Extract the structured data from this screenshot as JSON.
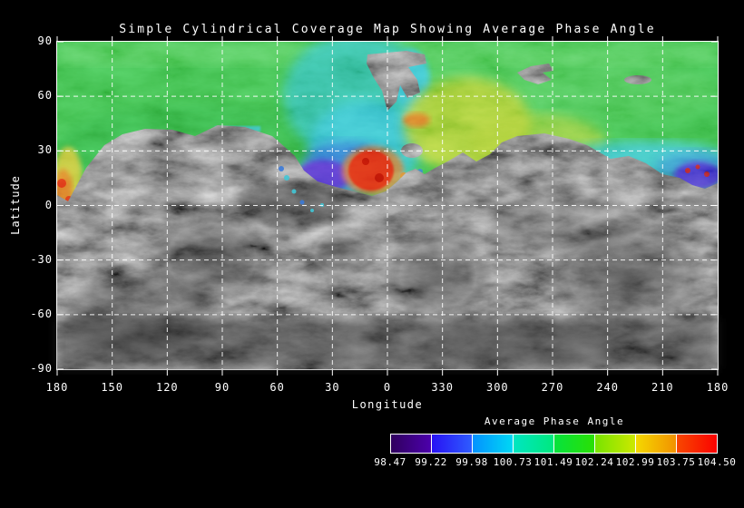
{
  "title": "Simple Cylindrical Coverage Map Showing Average Phase Angle",
  "axes": {
    "x": {
      "label": "Longitude",
      "ticks": [
        "180",
        "150",
        "120",
        "90",
        "60",
        "30",
        "0",
        "330",
        "300",
        "270",
        "240",
        "210",
        "180"
      ]
    },
    "y": {
      "label": "Latitude",
      "ticks": [
        "90",
        "60",
        "30",
        "0",
        "-30",
        "-60",
        "-90"
      ]
    }
  },
  "colorbar": {
    "title": "Average Phase Angle",
    "labels": [
      "98.47",
      "99.22",
      "99.98",
      "100.73",
      "101.49",
      "102.24",
      "102.99",
      "103.75",
      "104.50"
    ],
    "segments": [
      {
        "from": "#30005e",
        "to": "#4c00ac"
      },
      {
        "from": "#2812f4",
        "to": "#2e5cff"
      },
      {
        "from": "#0492ff",
        "to": "#00d8f4"
      },
      {
        "from": "#00e6c2",
        "to": "#00e87e"
      },
      {
        "from": "#06e23e",
        "to": "#2ae004"
      },
      {
        "from": "#78e400",
        "to": "#cce800"
      },
      {
        "from": "#f4d800",
        "to": "#f29200"
      },
      {
        "from": "#f84800",
        "to": "#fa0200"
      }
    ]
  },
  "map": {
    "colors": {
      "terrain_gray": "#474747",
      "gap_gray": "#4a4846",
      "coverage_green": "#46c354",
      "green_light": "#66d46a",
      "green_dark": "#2fae46",
      "teal": "#3cc4ae",
      "cyan": "#41c6d6",
      "blue": "#3b7ad8",
      "purple": "#5b3bcf",
      "red": "#e03018",
      "dark_red": "#c01808",
      "orange": "#e07c2a",
      "yellow_green": "#b4d23e",
      "yellow": "#d8c93c",
      "east_cyan": "#45c9d2",
      "east_purple": "#5a44d4"
    }
  },
  "chart_data": {
    "type": "heatmap",
    "title": "Simple Cylindrical Coverage Map Showing Average Phase Angle",
    "xlabel": "Longitude",
    "ylabel": "Latitude",
    "x_ticks": [
      180,
      150,
      120,
      90,
      60,
      30,
      0,
      330,
      300,
      270,
      240,
      210,
      180
    ],
    "y_ticks": [
      90,
      60,
      30,
      0,
      -30,
      -60,
      -90
    ],
    "x_axis_note": "longitude decreases left to right, wrapping 180 -> 0 -> 330 -> 180",
    "grid": "white dashed gridlines every 30 degrees, white frame, black figure background",
    "basemap": "grayscale shaded-relief asteroid surface mosaic; uncovered areas remain gray",
    "legend": {
      "title": "Average Phase Angle",
      "position": "bottom-right",
      "boundaries": [
        98.47,
        99.22,
        99.98,
        100.73,
        101.49,
        102.24,
        102.99,
        103.75,
        104.5
      ],
      "colors_low_to_high": [
        "dark purple",
        "blue",
        "cyan",
        "spring green",
        "green",
        "yellow-green",
        "yellow-orange",
        "red"
      ]
    },
    "coverage_regions": [
      {
        "area": "bulk of northern hemisphere, lat ~30 to 90",
        "phase": "~101.5-102.2 (green)"
      },
      {
        "area": "swath lon ~60-0, lat ~20 to 90",
        "phase": "~100.5-101.2 (teal/cyan)"
      },
      {
        "area": "lon ~45-15, lat ~15-30",
        "phase": "~99.2-100.0 (blue)"
      },
      {
        "area": "blob lon ~40-20, lat ~13-25",
        "phase": "~98.5-99.2 (purple)"
      },
      {
        "area": "patch lon ~15-0, lat ~13-28",
        "phase": "~104-104.5 (red) with orange fringe"
      },
      {
        "area": "band lon ~345-300, lat ~15-60",
        "phase": "~102.5-103.2 (yellow-green) with orange streaks"
      },
      {
        "area": "band lon ~250-185 along coverage edge, lat ~10-35",
        "phase": "~100.5-101.0 (cyan)"
      },
      {
        "area": "blob lon ~200-185, lat ~10-25",
        "phase": "~98.5-99.5 (purple-blue)"
      },
      {
        "area": "west edge streaks lon ~180-175, lat ~8-25",
        "phase": "~103-104.5 (yellow-orange-red)"
      },
      {
        "area": "southern hemisphere and scattered gaps (notch near lon 0 lat 75-90, wedge near lon 280 lat 70, dash near lon 240 lat 70)",
        "phase": "no coverage (gray basemap)"
      }
    ]
  }
}
